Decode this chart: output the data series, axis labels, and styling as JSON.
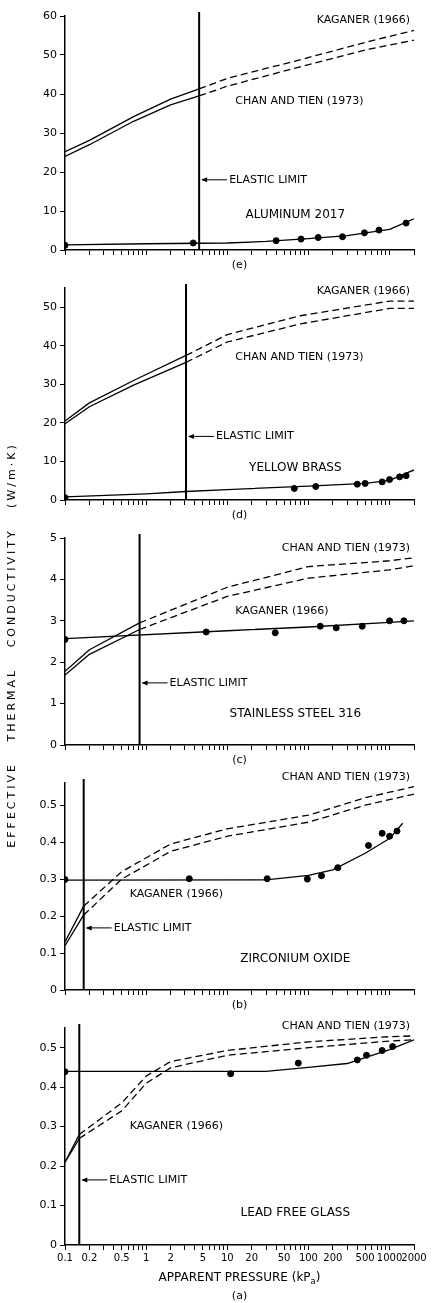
{
  "chart_data": [
    {
      "type": "line",
      "tick_labels": "y",
      "log": "x",
      "xlim": [
        0.1,
        2000
      ],
      "ylim": [
        0,
        60
      ],
      "yticks": [
        0,
        10,
        20,
        30,
        40,
        50,
        60
      ],
      "xticks": [
        0.1,
        0.2,
        {
          "value": 0.3,
          "label": null
        },
        {
          "value": 0.4,
          "label": null
        },
        0.5,
        {
          "value": 0.6,
          "label": null
        },
        {
          "value": 0.7,
          "label": null
        },
        {
          "value": 0.8,
          "label": null
        },
        {
          "value": 0.9,
          "label": null
        },
        1,
        2,
        {
          "value": 3,
          "label": null
        },
        {
          "value": 4,
          "label": null
        },
        5,
        {
          "value": 6,
          "label": null
        },
        {
          "value": 7,
          "label": null
        },
        {
          "value": 8,
          "label": null
        },
        {
          "value": 9,
          "label": null
        },
        10,
        20,
        {
          "value": 30,
          "label": null
        },
        {
          "value": 40,
          "label": null
        },
        50,
        {
          "value": 60,
          "label": null
        },
        {
          "value": 70,
          "label": null
        },
        {
          "value": 80,
          "label": null
        },
        {
          "value": 90,
          "label": null
        },
        100,
        200,
        {
          "value": 300,
          "label": null
        },
        {
          "value": 400,
          "label": null
        },
        500,
        {
          "value": 600,
          "label": null
        },
        {
          "value": 700,
          "label": null
        },
        {
          "value": 800,
          "label": null
        },
        {
          "value": 900,
          "label": null
        },
        1000,
        2000
      ],
      "annotations": [
        "ALUMINUM 2017",
        "(e)"
      ],
      "ref_lines": [
        {
          "axis": "x",
          "value": 4.5,
          "label": "ELASTIC LIMIT"
        }
      ],
      "series": [
        {
          "type": "scatter",
          "marker": "circle",
          "color": "#000000",
          "x": [
            0.1,
            3.8,
            40,
            81,
            132,
            263,
            490,
            740,
            1600
          ],
          "values": [
            1.2,
            1.8,
            2.4,
            2.8,
            3.2,
            3.4,
            4.4,
            5.1,
            6.9
          ]
        },
        {
          "type": "line",
          "color": "#000000",
          "x": [
            0.1,
            1,
            10,
            30,
            100,
            300,
            1000,
            2000
          ],
          "values": [
            1.3,
            1.6,
            1.8,
            2.2,
            2.9,
            3.7,
            5.3,
            8
          ]
        },
        {
          "type": "line",
          "color": "#000000",
          "x": [
            0.1,
            0.2,
            0.7,
            2,
            4.5
          ],
          "values": [
            25.2,
            28.1,
            34.2,
            38.7,
            41.3
          ]
        },
        {
          "type": "line",
          "color": "#000000",
          "x": [
            0.1,
            0.2,
            0.7,
            2,
            4.5
          ],
          "values": [
            24,
            27,
            33,
            37.2,
            39.5
          ]
        },
        {
          "type": "line",
          "name": "KAGANER (1966)",
          "line_style": "dashed",
          "color": "#000000",
          "x": [
            4.5,
            10,
            83,
            560,
            2000
          ],
          "values": [
            41.3,
            44,
            48.9,
            53.5,
            56.3
          ]
        },
        {
          "type": "line",
          "name": "CHAN AND TIEN (1973)",
          "line_style": "dashed",
          "color": "#000000",
          "x": [
            4.5,
            10,
            83,
            560,
            2000
          ],
          "values": [
            39.5,
            42,
            47.1,
            51.5,
            53.8
          ]
        }
      ]
    },
    {
      "type": "line",
      "tick_labels": "y",
      "log": "x",
      "xlim": [
        0.1,
        2000
      ],
      "ylim": [
        0,
        55
      ],
      "yticks": [
        0,
        10,
        20,
        30,
        40,
        50
      ],
      "xticks": [
        0.1,
        0.2,
        {
          "value": 0.3,
          "label": null
        },
        {
          "value": 0.4,
          "label": null
        },
        0.5,
        {
          "value": 0.6,
          "label": null
        },
        {
          "value": 0.7,
          "label": null
        },
        {
          "value": 0.8,
          "label": null
        },
        {
          "value": 0.9,
          "label": null
        },
        1,
        2,
        {
          "value": 3,
          "label": null
        },
        {
          "value": 4,
          "label": null
        },
        5,
        {
          "value": 6,
          "label": null
        },
        {
          "value": 7,
          "label": null
        },
        {
          "value": 8,
          "label": null
        },
        {
          "value": 9,
          "label": null
        },
        10,
        20,
        {
          "value": 30,
          "label": null
        },
        {
          "value": 40,
          "label": null
        },
        50,
        {
          "value": 60,
          "label": null
        },
        {
          "value": 70,
          "label": null
        },
        {
          "value": 80,
          "label": null
        },
        {
          "value": 90,
          "label": null
        },
        100,
        200,
        {
          "value": 300,
          "label": null
        },
        {
          "value": 400,
          "label": null
        },
        500,
        {
          "value": 600,
          "label": null
        },
        {
          "value": 700,
          "label": null
        },
        {
          "value": 800,
          "label": null
        },
        {
          "value": 900,
          "label": null
        },
        1000,
        2000
      ],
      "annotations": [
        "YELLOW BRASS",
        "(d)"
      ],
      "ref_lines": [
        {
          "axis": "x",
          "value": 3.1,
          "label": "ELASTIC LIMIT"
        }
      ],
      "series": [
        {
          "type": "scatter",
          "marker": "circle",
          "color": "#000000",
          "x": [
            0.1,
            67,
            123,
            400,
            500,
            810,
            1000,
            1330,
            1600
          ],
          "values": [
            0.6,
            3.0,
            3.5,
            4.1,
            4.3,
            4.7,
            5.3,
            6.0,
            6.3
          ]
        },
        {
          "type": "line",
          "color": "#000000",
          "x": [
            0.1,
            1,
            3.1,
            10,
            100,
            500,
            1000,
            2000
          ],
          "values": [
            0.8,
            1.6,
            2.2,
            2.7,
            3.6,
            4.3,
            5.1,
            7.8
          ]
        },
        {
          "type": "line",
          "color": "#000000",
          "x": [
            0.1,
            0.2,
            0.7,
            3.1
          ],
          "values": [
            20.5,
            25.2,
            31,
            37.5
          ]
        },
        {
          "type": "line",
          "color": "#000000",
          "x": [
            0.1,
            0.2,
            0.7,
            3.1
          ],
          "values": [
            19.8,
            24.2,
            29.8,
            35.7
          ]
        },
        {
          "type": "line",
          "name": "KAGANER (1966)",
          "line_style": "dashed",
          "color": "#000000",
          "x": [
            3.1,
            10,
            80,
            1000,
            2000
          ],
          "values": [
            37.5,
            42.9,
            47.8,
            51.6,
            51.6
          ]
        },
        {
          "type": "line",
          "name": "CHAN AND TIEN (1973)",
          "line_style": "dashed",
          "color": "#000000",
          "x": [
            3.1,
            10,
            80,
            1000,
            2000
          ],
          "values": [
            35.7,
            41,
            45.7,
            49.7,
            49.7
          ]
        }
      ]
    },
    {
      "type": "line",
      "tick_labels": "y",
      "log": "x",
      "xlim": [
        0.1,
        2000
      ],
      "ylim": [
        0,
        5
      ],
      "yticks": [
        0,
        1,
        2,
        3,
        4,
        5
      ],
      "ylabel": "EFFECTIVE THERMAL CONDUCTIVITY (W/m·K)",
      "xticks": [
        0.1,
        0.2,
        {
          "value": 0.3,
          "label": null
        },
        {
          "value": 0.4,
          "label": null
        },
        0.5,
        {
          "value": 0.6,
          "label": null
        },
        {
          "value": 0.7,
          "label": null
        },
        {
          "value": 0.8,
          "label": null
        },
        {
          "value": 0.9,
          "label": null
        },
        1,
        2,
        {
          "value": 3,
          "label": null
        },
        {
          "value": 4,
          "label": null
        },
        5,
        {
          "value": 6,
          "label": null
        },
        {
          "value": 7,
          "label": null
        },
        {
          "value": 8,
          "label": null
        },
        {
          "value": 9,
          "label": null
        },
        10,
        20,
        {
          "value": 30,
          "label": null
        },
        {
          "value": 40,
          "label": null
        },
        50,
        {
          "value": 60,
          "label": null
        },
        {
          "value": 70,
          "label": null
        },
        {
          "value": 80,
          "label": null
        },
        {
          "value": 90,
          "label": null
        },
        100,
        200,
        {
          "value": 300,
          "label": null
        },
        {
          "value": 400,
          "label": null
        },
        500,
        {
          "value": 600,
          "label": null
        },
        {
          "value": 700,
          "label": null
        },
        {
          "value": 800,
          "label": null
        },
        {
          "value": 900,
          "label": null
        },
        1000,
        2000
      ],
      "annotations": [
        "STAINLESS STEEL 316",
        "(c)"
      ],
      "ref_lines": [
        {
          "axis": "x",
          "value": 0.83,
          "label": "ELASTIC LIMIT"
        }
      ],
      "series": [
        {
          "type": "scatter",
          "marker": "circle",
          "color": "#000000",
          "x": [
            0.1,
            5.5,
            39,
            140,
            220,
            460,
            1000,
            1500
          ],
          "values": [
            2.55,
            2.73,
            2.71,
            2.87,
            2.83,
            2.87,
            3.0,
            3.0
          ]
        },
        {
          "type": "line",
          "color": "#000000",
          "x": [
            0.1,
            10,
            100,
            1000,
            2000
          ],
          "values": [
            2.57,
            2.76,
            2.85,
            2.96,
            3.0
          ]
        },
        {
          "type": "line",
          "color": "#000000",
          "x": [
            0.1,
            0.2,
            0.83
          ],
          "values": [
            1.78,
            2.3,
            2.95
          ]
        },
        {
          "type": "line",
          "color": "#000000",
          "x": [
            0.1,
            0.2,
            0.83
          ],
          "values": [
            1.69,
            2.19,
            2.79
          ]
        },
        {
          "type": "line",
          "name": "CHAN AND TIEN (1973)",
          "line_style": "dashed",
          "color": "#000000",
          "x": [
            0.83,
            10,
            100,
            1000,
            2000
          ],
          "values": [
            2.95,
            3.81,
            4.31,
            4.45,
            4.52
          ]
        },
        {
          "type": "line",
          "name": "KAGANER (1966)",
          "line_style": "dashed",
          "color": "#000000",
          "x": [
            0.83,
            10,
            100,
            1000,
            2000
          ],
          "values": [
            2.79,
            3.59,
            4.03,
            4.23,
            4.33
          ]
        }
      ]
    },
    {
      "type": "line",
      "tick_labels": "y",
      "log": "x",
      "xlim": [
        0.1,
        2000
      ],
      "ylim": [
        0,
        0.56
      ],
      "yticks": [
        0,
        0.1,
        0.2,
        0.3,
        0.4,
        0.5
      ],
      "xticks": [
        0.1,
        0.2,
        {
          "value": 0.3,
          "label": null
        },
        {
          "value": 0.4,
          "label": null
        },
        0.5,
        {
          "value": 0.6,
          "label": null
        },
        {
          "value": 0.7,
          "label": null
        },
        {
          "value": 0.8,
          "label": null
        },
        {
          "value": 0.9,
          "label": null
        },
        1,
        2,
        {
          "value": 3,
          "label": null
        },
        {
          "value": 4,
          "label": null
        },
        5,
        {
          "value": 6,
          "label": null
        },
        {
          "value": 7,
          "label": null
        },
        {
          "value": 8,
          "label": null
        },
        {
          "value": 9,
          "label": null
        },
        10,
        20,
        {
          "value": 30,
          "label": null
        },
        {
          "value": 40,
          "label": null
        },
        50,
        {
          "value": 60,
          "label": null
        },
        {
          "value": 70,
          "label": null
        },
        {
          "value": 80,
          "label": null
        },
        {
          "value": 90,
          "label": null
        },
        100,
        200,
        {
          "value": 300,
          "label": null
        },
        {
          "value": 400,
          "label": null
        },
        500,
        {
          "value": 600,
          "label": null
        },
        {
          "value": 700,
          "label": null
        },
        {
          "value": 800,
          "label": null
        },
        {
          "value": 900,
          "label": null
        },
        1000,
        2000
      ],
      "annotations": [
        "ZIRCONIUM OXIDE",
        "(b)"
      ],
      "ref_lines": [
        {
          "axis": "x",
          "value": 0.17,
          "label": "ELASTIC LIMIT"
        }
      ],
      "series": [
        {
          "type": "scatter",
          "marker": "circle",
          "color": "#000000",
          "x": [
            0.1,
            3.4,
            31,
            97,
            145,
            230,
            550,
            810,
            1000,
            1235
          ],
          "values": [
            0.299,
            0.301,
            0.301,
            0.3,
            0.309,
            0.331,
            0.391,
            0.424,
            0.416,
            0.43
          ]
        },
        {
          "type": "line",
          "color": "#000000",
          "x": [
            0.1,
            30,
            100,
            200,
            500,
            1000,
            1450
          ],
          "values": [
            0.297,
            0.298,
            0.31,
            0.325,
            0.37,
            0.41,
            0.451
          ]
        },
        {
          "type": "line",
          "color": "#000000",
          "x": [
            0.1,
            0.17
          ],
          "values": [
            0.13,
            0.227
          ]
        },
        {
          "type": "line",
          "color": "#000000",
          "x": [
            0.1,
            0.17
          ],
          "values": [
            0.12,
            0.203
          ]
        },
        {
          "type": "line",
          "name": "CHAN AND TIEN (1973)",
          "line_style": "dashed",
          "color": "#000000",
          "x": [
            0.17,
            0.5,
            2,
            10,
            100,
            500,
            1000,
            2000
          ],
          "values": [
            0.227,
            0.32,
            0.395,
            0.436,
            0.473,
            0.52,
            0.535,
            0.55
          ]
        },
        {
          "type": "line",
          "name": "KAGANER (1966)",
          "line_style": "dashed",
          "color": "#000000",
          "x": [
            0.17,
            0.5,
            2,
            10,
            100,
            500,
            1000,
            2000
          ],
          "values": [
            0.203,
            0.3,
            0.375,
            0.416,
            0.454,
            0.5,
            0.515,
            0.53
          ]
        }
      ]
    },
    {
      "type": "line",
      "log": "x",
      "xlim": [
        0.1,
        2000
      ],
      "ylim": [
        0,
        0.55
      ],
      "yticks": [
        0,
        0.1,
        0.2,
        0.3,
        0.4,
        0.5
      ],
      "xlabel": "APPARENT PRESSURE (kP$_{a}$)",
      "xticks": [
        0.1,
        0.2,
        {
          "value": 0.3,
          "label": null
        },
        {
          "value": 0.4,
          "label": null
        },
        0.5,
        {
          "value": 0.6,
          "label": null
        },
        {
          "value": 0.7,
          "label": null
        },
        {
          "value": 0.8,
          "label": null
        },
        {
          "value": 0.9,
          "label": null
        },
        1,
        2,
        {
          "value": 3,
          "label": null
        },
        {
          "value": 4,
          "label": null
        },
        5,
        {
          "value": 6,
          "label": null
        },
        {
          "value": 7,
          "label": null
        },
        {
          "value": 8,
          "label": null
        },
        {
          "value": 9,
          "label": null
        },
        10,
        20,
        {
          "value": 30,
          "label": null
        },
        {
          "value": 40,
          "label": null
        },
        50,
        {
          "value": 60,
          "label": null
        },
        {
          "value": 70,
          "label": null
        },
        {
          "value": 80,
          "label": null
        },
        {
          "value": 90,
          "label": null
        },
        100,
        200,
        {
          "value": 300,
          "label": null
        },
        {
          "value": 400,
          "label": null
        },
        500,
        {
          "value": 600,
          "label": null
        },
        {
          "value": 700,
          "label": null
        },
        {
          "value": 800,
          "label": null
        },
        {
          "value": 900,
          "label": null
        },
        1000,
        2000
      ],
      "annotations": [
        "LEAD FREE GLASS",
        "(a)"
      ],
      "ref_lines": [
        {
          "axis": "x",
          "value": 0.15,
          "label": "ELASTIC LIMIT"
        }
      ],
      "series": [
        {
          "type": "scatter",
          "marker": "circle",
          "color": "#000000",
          "x": [
            0.1,
            11,
            75,
            400,
            520,
            810,
            1090
          ],
          "values": [
            0.439,
            0.434,
            0.461,
            0.469,
            0.481,
            0.493,
            0.503
          ]
        },
        {
          "type": "line",
          "color": "#000000",
          "x": [
            0.1,
            30,
            100,
            300,
            500,
            1000,
            2000
          ],
          "values": [
            0.44,
            0.44,
            0.45,
            0.46,
            0.475,
            0.495,
            0.52
          ]
        },
        {
          "type": "line",
          "color": "#000000",
          "x": [
            0.1,
            0.15
          ],
          "values": [
            0.21,
            0.28
          ]
        },
        {
          "type": "line",
          "color": "#000000",
          "x": [
            0.1,
            0.15
          ],
          "values": [
            0.21,
            0.27
          ]
        },
        {
          "type": "line",
          "name": "CHAN AND TIEN (1973)",
          "line_style": "dashed",
          "color": "#000000",
          "x": [
            0.15,
            0.5,
            1,
            2,
            10,
            100,
            1000,
            2000
          ],
          "values": [
            0.28,
            0.36,
            0.428,
            0.465,
            0.493,
            0.515,
            0.528,
            0.53
          ]
        },
        {
          "type": "line",
          "name": "KAGANER (1966)",
          "line_style": "dashed",
          "color": "#000000",
          "x": [
            0.15,
            0.5,
            1,
            2,
            10,
            100,
            1000,
            2000
          ],
          "values": [
            0.27,
            0.34,
            0.41,
            0.449,
            0.481,
            0.5,
            0.517,
            0.52
          ]
        }
      ]
    }
  ]
}
